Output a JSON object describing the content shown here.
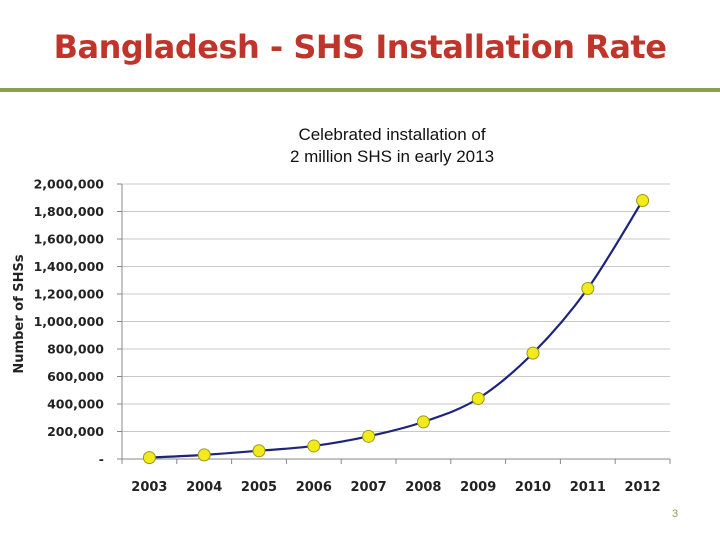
{
  "slide": {
    "title": "Bangladesh - SHS Installation Rate",
    "annotation_line1": "Celebrated installation of",
    "annotation_line2": "2 million SHS in early 2013",
    "page_number": "3"
  },
  "colors": {
    "title": "#c0352b",
    "rule": "#8aa04a",
    "line": "#1f237a",
    "marker_fill": "#f2ea1a",
    "marker_stroke": "#9a9a20",
    "grid": "#c8c8c8"
  },
  "chart_data": {
    "type": "line",
    "title": "",
    "xlabel": "",
    "ylabel": "Number of SHSs",
    "categories": [
      "2003",
      "2004",
      "2005",
      "2006",
      "2007",
      "2008",
      "2009",
      "2010",
      "2011",
      "2012"
    ],
    "series": [
      {
        "values": [
          10000,
          30000,
          60000,
          95000,
          165000,
          270000,
          440000,
          770000,
          1240000,
          1880000
        ]
      }
    ],
    "ylim": [
      0,
      2000000
    ],
    "y_ticks": [
      {
        "value": 0,
        "label": "-"
      },
      {
        "value": 200000,
        "label": "200,000"
      },
      {
        "value": 400000,
        "label": "400,000"
      },
      {
        "value": 600000,
        "label": "600,000"
      },
      {
        "value": 800000,
        "label": "800,000"
      },
      {
        "value": 1000000,
        "label": "1,000,000"
      },
      {
        "value": 1200000,
        "label": "1,200,000"
      },
      {
        "value": 1400000,
        "label": "1,400,000"
      },
      {
        "value": 1600000,
        "label": "1,600,000"
      },
      {
        "value": 1800000,
        "label": "1,800,000"
      },
      {
        "value": 2000000,
        "label": "2,000,000"
      }
    ],
    "grid": true,
    "legend": "none",
    "line_style": "smooth"
  }
}
